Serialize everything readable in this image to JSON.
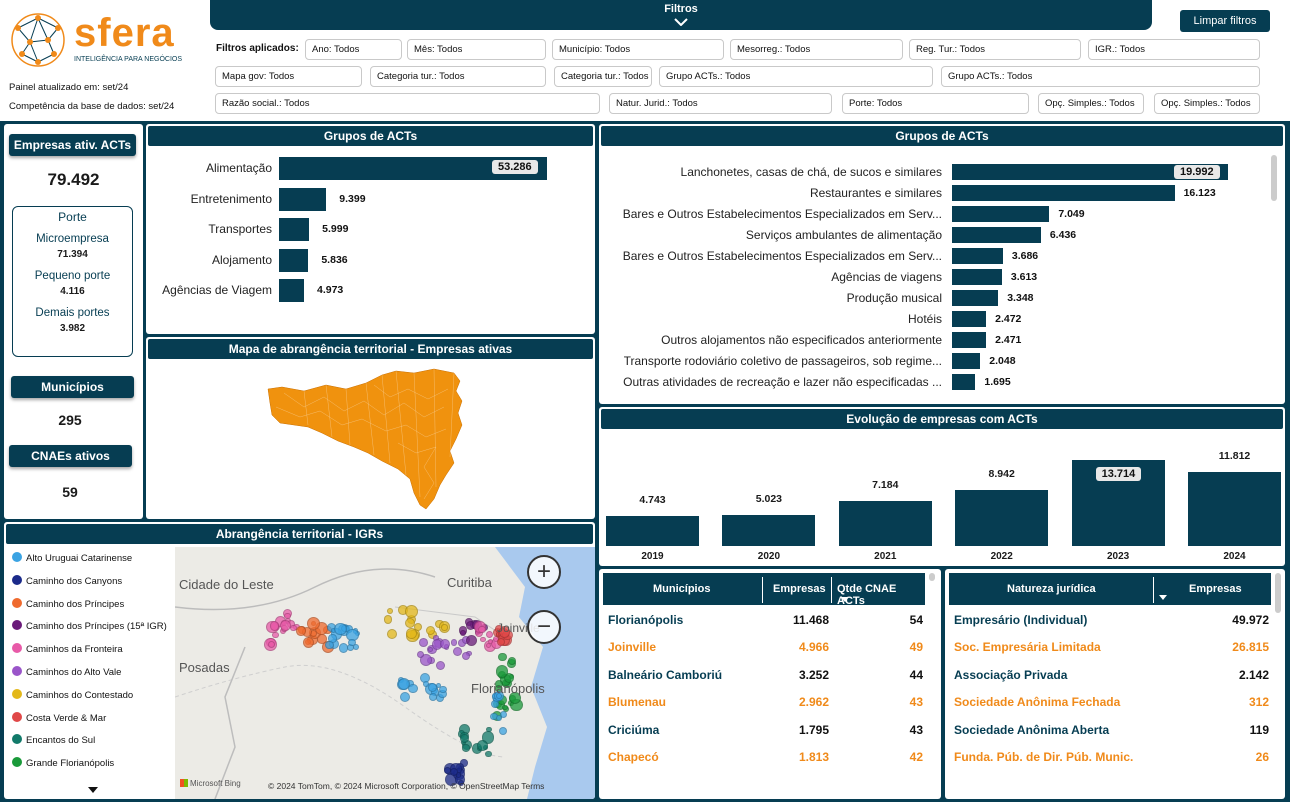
{
  "header": {
    "brand": "sfera",
    "brand_sub": "INTELIGÊNCIA PARA NEGÓCIOS",
    "updated": "Painel atualizado em: set/24",
    "competence": "Competência da base de dados: set/24",
    "filters_title": "Filtros",
    "clear_button": "Limpar filtros",
    "applied_label": "Filtros aplicados:",
    "chips": [
      "Ano: Todos",
      "Mês: Todos",
      "Município: Todos",
      "Mesorreg.: Todos",
      "Reg. Tur.: Todos",
      "IGR.: Todos",
      "Mapa gov: Todos",
      "Categoria tur.: Todos",
      "Categoria tur.: Todos",
      "Grupo ACTs.: Todos",
      "Grupo ACTs.: Todos",
      "Razão social.: Todos",
      "Natur. Jurid.: Todos",
      "Porte: Todos",
      "Opç. Simples.: Todos",
      "Opç. Simples.: Todos"
    ]
  },
  "kpis": {
    "empresas_label": "Empresas ativ. ACTs",
    "empresas_value": "79.492",
    "porte_title": "Porte",
    "porte": [
      {
        "label": "Microempresa",
        "value": "71.394"
      },
      {
        "label": "Pequeno porte",
        "value": "4.116"
      },
      {
        "label": "Demais portes",
        "value": "3.982"
      }
    ],
    "municipios_label": "Municípios",
    "municipios_value": "295",
    "cnaes_label": "CNAEs ativos",
    "cnaes_value": "59"
  },
  "grupos_left": {
    "title": "Grupos de ACTs",
    "chart_data": {
      "type": "bar",
      "categories": [
        "Alimentação",
        "Entretenimento",
        "Transportes",
        "Alojamento",
        "Agências de Viagem"
      ],
      "values": [
        53286,
        9399,
        5999,
        5836,
        4973
      ],
      "labels": [
        "53.286",
        "9.399",
        "5.999",
        "5.836",
        "4.973"
      ]
    }
  },
  "grupos_right": {
    "title": "Grupos de ACTs",
    "chart_data": {
      "type": "bar",
      "categories": [
        "Lanchonetes, casas de chá, de sucos e similares",
        "Restaurantes e similares",
        "Bares e Outros Estabelecimentos Especializados em Serv...",
        "Serviços ambulantes de alimentação",
        "Bares e Outros Estabelecimentos Especializados em Serv...",
        "Agências de viagens",
        "Produção musical",
        "Hotéis",
        "Outros alojamentos não especificados anteriormente",
        "Transporte rodoviário coletivo de passageiros, sob regime...",
        "Outras atividades de recreação e lazer não especificadas ..."
      ],
      "values": [
        19992,
        16123,
        7049,
        6436,
        3686,
        3613,
        3348,
        2472,
        2471,
        2048,
        1695
      ],
      "labels": [
        "19.992",
        "16.123",
        "7.049",
        "6.436",
        "3.686",
        "3.613",
        "3.348",
        "2.472",
        "2.471",
        "2.048",
        "1.695"
      ]
    }
  },
  "map_title": "Mapa de abrangência territorial - Empresas ativas",
  "evolucao": {
    "title": "Evolução de empresas com ACTs",
    "chart_data": {
      "type": "bar",
      "categories": [
        "2019",
        "2020",
        "2021",
        "2022",
        "2023",
        "2024"
      ],
      "values": [
        4743,
        5023,
        7184,
        8942,
        13714,
        11812
      ],
      "labels": [
        "4.743",
        "5.023",
        "7.184",
        "8.942",
        "13.714",
        "11.812"
      ]
    }
  },
  "igr": {
    "title": "Abrangência territorial - IGRs",
    "legend": [
      {
        "name": "Alto Uruguai Catarinense",
        "color": "#3aa3e3"
      },
      {
        "name": "Caminho dos Canyons",
        "color": "#1b2a8a"
      },
      {
        "name": "Caminho dos Príncipes",
        "color": "#ef6a2e"
      },
      {
        "name": "Caminho dos Príncipes (15ª IGR)",
        "color": "#6a1a7a"
      },
      {
        "name": "Caminhos da Fronteira",
        "color": "#e85aa8"
      },
      {
        "name": "Caminhos do Alto Vale",
        "color": "#9a55c9"
      },
      {
        "name": "Caminhos do Contestado",
        "color": "#e3b81a"
      },
      {
        "name": "Costa Verde & Mar",
        "color": "#e04848"
      },
      {
        "name": "Encantos do Sul",
        "color": "#127a6a"
      },
      {
        "name": "Grande Florianópolis",
        "color": "#1a9a3a"
      }
    ],
    "map_labels": {
      "city1": "Cidade do Leste",
      "city2": "Curitiba",
      "city3": "Posadas",
      "city4": "Joinville",
      "city5": "Florianópolis"
    },
    "attribution": "© 2024 TomTom, © 2024 Microsoft Corporation, © OpenStreetMap  Terms",
    "bing": "Microsoft Bing",
    "zoom_in": "+",
    "zoom_out": "−"
  },
  "municipios_table": {
    "headers": [
      "Municípios",
      "Empresas",
      "Qtde CNAE ACTs"
    ],
    "rows": [
      {
        "name": "Florianópolis",
        "empresas": "11.468",
        "cnae": "54",
        "highlight": false
      },
      {
        "name": "Joinville",
        "empresas": "4.966",
        "cnae": "49",
        "highlight": true
      },
      {
        "name": "Balneário Camboriú",
        "empresas": "3.252",
        "cnae": "44",
        "highlight": false
      },
      {
        "name": "Blumenau",
        "empresas": "2.962",
        "cnae": "43",
        "highlight": true
      },
      {
        "name": "Criciúma",
        "empresas": "1.795",
        "cnae": "43",
        "highlight": false
      },
      {
        "name": "Chapecó",
        "empresas": "1.813",
        "cnae": "42",
        "highlight": true
      }
    ]
  },
  "natureza_table": {
    "headers": [
      "Natureza jurídica",
      "Empresas"
    ],
    "rows": [
      {
        "name": "Empresário (Individual)",
        "empresas": "49.972",
        "highlight": false
      },
      {
        "name": "Soc. Empresária Limitada",
        "empresas": "26.815",
        "highlight": true
      },
      {
        "name": "Associação Privada",
        "empresas": "2.142",
        "highlight": false
      },
      {
        "name": "Sociedade Anônima Fechada",
        "empresas": "312",
        "highlight": true
      },
      {
        "name": "Sociedade Anônima Aberta",
        "empresas": "119",
        "highlight": false
      },
      {
        "name": "Funda. Púb. de Dir. Púb. Munic.",
        "empresas": "26",
        "highlight": true
      }
    ]
  },
  "colors": {
    "navy": "#063d52",
    "orange": "#f08a1a",
    "map_orange": "#f0920e"
  }
}
